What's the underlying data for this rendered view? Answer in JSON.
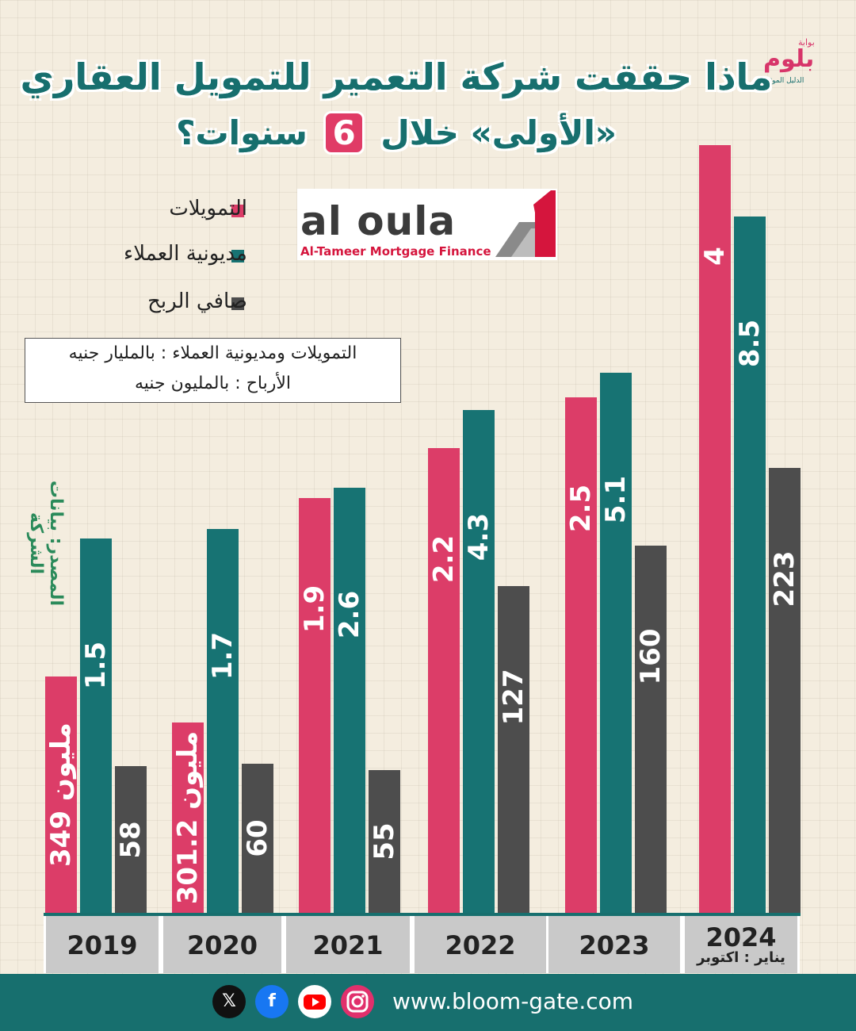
{
  "title": {
    "line1": "ماذا حققت شركة التعمير للتمويل العقاري",
    "line2_pre": "«الأولى» خلال",
    "line2_num": "6",
    "line2_post": "سنوات؟"
  },
  "brand": {
    "name": "بلوم",
    "top": "بوابة",
    "sub": "الدليل الموثوق"
  },
  "logo": {
    "word": "al oula",
    "sub": "Al-Tameer Mortgage Finance",
    "mark": "1"
  },
  "legend": [
    {
      "label": "التمويلات",
      "color": "#dc3d68"
    },
    {
      "label": "مديونية العملاء",
      "color": "#177373"
    },
    {
      "label": "صافي الربح",
      "color": "#4d4d4d"
    }
  ],
  "units": {
    "line1": "التمويلات ومديونية العملاء : بالمليار جنيه",
    "line2": "الأرباح  : بالمليون جنيه"
  },
  "source": "المصدر: بيانات الشركة",
  "chart_data": {
    "type": "bar",
    "categories": [
      "2019",
      "2020",
      "2021",
      "2022",
      "2023",
      "2024"
    ],
    "category_note": {
      "2024": "يناير : اكتوبر"
    },
    "series": [
      {
        "name": "التمويلات",
        "unit": "مليار جنيه",
        "values": [
          0.349,
          0.3012,
          1.9,
          2.2,
          2.5,
          4
        ],
        "labels": [
          "349 مليون",
          "301.2 مليون",
          "1.9",
          "2.2",
          "2.5",
          "4"
        ]
      },
      {
        "name": "مديونية العملاء",
        "unit": "مليار جنيه",
        "values": [
          1.5,
          1.7,
          2.6,
          4.3,
          5.1,
          8.5
        ],
        "labels": [
          "1.5",
          "1.7",
          "2.6",
          "4.3",
          "5.1",
          "8.5"
        ]
      },
      {
        "name": "صافي الربح",
        "unit": "مليون جنيه",
        "values": [
          58,
          60,
          55,
          127,
          160,
          223
        ],
        "labels": [
          "58",
          "60",
          "55",
          "127",
          "160",
          "223"
        ]
      }
    ],
    "title": "ماذا حققت شركة التعمير للتمويل العقاري «الأولى» خلال 6 سنوات؟"
  },
  "footer": {
    "website": "www.bloom-gate.com",
    "icons": [
      "x-icon",
      "facebook-icon",
      "youtube-icon",
      "instagram-icon"
    ]
  }
}
